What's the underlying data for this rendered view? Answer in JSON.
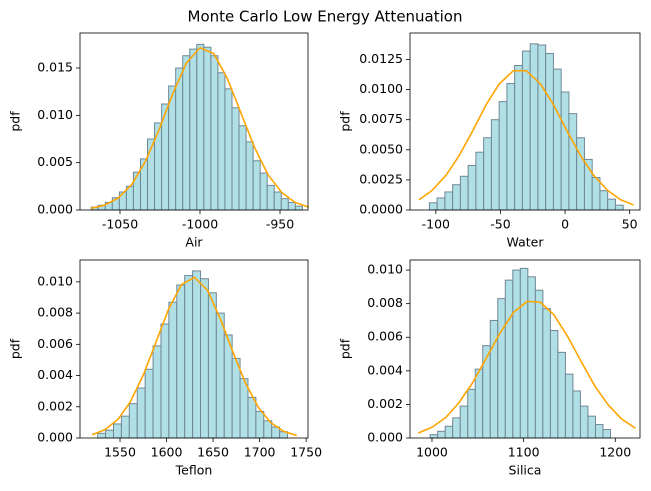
{
  "title": "Monte Carlo Low Energy Attenuation",
  "chart_data": [
    {
      "type": "histogram",
      "xlabel": "Air",
      "ylabel": "pdf",
      "color": "#b0e0e6",
      "edgecolor": "#6f8794",
      "bins": [
        -1068,
        -1063.6,
        -1059.2,
        -1054.8,
        -1050.4,
        -1046,
        -1041.6,
        -1037.2,
        -1032.8,
        -1028.4,
        -1024,
        -1019.6,
        -1015.2,
        -1010.8,
        -1006.4,
        -1002,
        -997.6,
        -993.2,
        -988.8,
        -984.4,
        -980,
        -975.6,
        -971.2,
        -966.8,
        -962.4,
        -958,
        -953.6,
        -949.2,
        -944.8,
        -940.4,
        -936
      ],
      "values": [
        0.0003,
        0.0005,
        0.0008,
        0.0013,
        0.0019,
        0.0025,
        0.004,
        0.0054,
        0.0075,
        0.0092,
        0.0112,
        0.0131,
        0.015,
        0.0163,
        0.017,
        0.0175,
        0.0172,
        0.0163,
        0.0145,
        0.0128,
        0.0108,
        0.0089,
        0.0072,
        0.0052,
        0.0039,
        0.0026,
        0.0019,
        0.0012,
        0.0008,
        0.0004
      ],
      "curve": {
        "color": "#ffa500",
        "x": [
          -1068,
          -1059.5,
          -1051,
          -1042.5,
          -1034,
          -1025.5,
          -1017,
          -1008.5,
          -1000,
          -991.5,
          -983,
          -974.5,
          -966,
          -957.5,
          -949,
          -940.5,
          -932
        ],
        "values": [
          0.00018,
          0.00052,
          0.00127,
          0.00273,
          0.00518,
          0.00851,
          0.0123,
          0.01553,
          0.01714,
          0.01654,
          0.01393,
          0.0103,
          0.00664,
          0.00373,
          0.00186,
          0.00079,
          0.0003
        ]
      },
      "xlim": [
        -1075,
        -932.5
      ],
      "ylim": [
        0,
        0.0187
      ],
      "xticks": [
        -1050,
        -1000,
        -950
      ],
      "yticks": [
        {
          "value": 0,
          "label": "0.000"
        },
        0.005,
        {
          "value": 0.01,
          "label": "0.010"
        },
        0.015
      ]
    },
    {
      "type": "histogram",
      "xlabel": "Water",
      "ylabel": "pdf",
      "color": "#b0e0e6",
      "edgecolor": "#6f8794",
      "bins": [
        -105,
        -99,
        -93,
        -87,
        -81,
        -75,
        -69,
        -63,
        -57,
        -51,
        -45,
        -39,
        -33,
        -27,
        -21,
        -15,
        -9,
        -3,
        3,
        9,
        15,
        21,
        27,
        33,
        39,
        45
      ],
      "values": [
        0.0006,
        0.001,
        0.0015,
        0.0021,
        0.0028,
        0.0037,
        0.0048,
        0.006,
        0.0075,
        0.009,
        0.0105,
        0.012,
        0.0132,
        0.0138,
        0.0137,
        0.013,
        0.0117,
        0.0098,
        0.008,
        0.006,
        0.0042,
        0.0027,
        0.0016,
        0.0009,
        0.0004
      ],
      "curve": {
        "color": "#ffa500",
        "x": [
          -113,
          -103,
          -92,
          -82,
          -71,
          -61,
          -51,
          -40,
          -30,
          -19,
          -9,
          1,
          12,
          22,
          33,
          43,
          53
        ],
        "values": [
          0.00085,
          0.00162,
          0.0029,
          0.00451,
          0.00667,
          0.00876,
          0.01047,
          0.01157,
          0.01157,
          0.01047,
          0.00876,
          0.00667,
          0.00451,
          0.0029,
          0.00162,
          0.00085,
          0.00042
        ]
      },
      "xlim": [
        -120,
        58
      ],
      "ylim": [
        0,
        0.0147
      ],
      "xticks": [
        -100,
        -50,
        0,
        50
      ],
      "yticks": [
        {
          "value": 0,
          "label": "0.0000"
        },
        0.0025,
        {
          "value": 0.005,
          "label": "0.0050"
        },
        0.0075,
        {
          "value": 0.01,
          "label": "0.0100"
        },
        0.0125
      ]
    },
    {
      "type": "histogram",
      "xlabel": "Teflon",
      "ylabel": "pdf",
      "color": "#b0e0e6",
      "edgecolor": "#6f8794",
      "bins": [
        1526,
        1534.5,
        1543,
        1551.5,
        1560,
        1568.5,
        1577,
        1585.5,
        1594,
        1602.5,
        1611,
        1619.5,
        1628,
        1636.5,
        1645,
        1653.5,
        1662,
        1670.5,
        1679,
        1687.5,
        1696,
        1704.5,
        1713,
        1721.5,
        1730
      ],
      "values": [
        0.0003,
        0.0005,
        0.0009,
        0.0014,
        0.0022,
        0.0032,
        0.0044,
        0.0059,
        0.0073,
        0.0087,
        0.0098,
        0.0104,
        0.0107,
        0.0102,
        0.0093,
        0.008,
        0.0066,
        0.0051,
        0.0038,
        0.0026,
        0.0017,
        0.0011,
        0.0007,
        0.0004
      ],
      "curve": {
        "color": "#ffa500",
        "x": [
          1520,
          1534,
          1548,
          1561,
          1575,
          1589,
          1602,
          1616,
          1630,
          1644,
          1658,
          1671,
          1685,
          1699,
          1712,
          1726,
          1740
        ],
        "values": [
          0.00021,
          0.00054,
          0.00121,
          0.00231,
          0.00403,
          0.00619,
          0.00823,
          0.00982,
          0.01029,
          0.00947,
          0.0076,
          0.00556,
          0.00349,
          0.00193,
          0.00098,
          0.00042,
          0.00016
        ]
      },
      "xlim": [
        1507,
        1752
      ],
      "ylim": [
        0,
        0.0114
      ],
      "xticks": [
        1550,
        1600,
        1650,
        1700,
        1750
      ],
      "yticks": [
        {
          "value": 0,
          "label": "0.000"
        },
        0.002,
        0.004,
        0.006,
        0.008,
        {
          "value": 0.01,
          "label": "0.010"
        }
      ]
    },
    {
      "type": "histogram",
      "xlabel": "Silica",
      "ylabel": "pdf",
      "color": "#b0e0e6",
      "edgecolor": "#6f8794",
      "bins": [
        998,
        1006.2,
        1014.4,
        1022.6,
        1030.8,
        1039,
        1047.2,
        1055.4,
        1063.6,
        1071.8,
        1080,
        1088.2,
        1096.4,
        1104.6,
        1112.8,
        1121,
        1129.2,
        1137.4,
        1145.6,
        1153.8,
        1162,
        1170.2,
        1178.4,
        1186.6,
        1194.8
      ],
      "values": [
        0.0002,
        0.0004,
        0.0007,
        0.0012,
        0.0019,
        0.0029,
        0.0041,
        0.0055,
        0.007,
        0.0083,
        0.0094,
        0.01,
        0.0101,
        0.0096,
        0.0088,
        0.0077,
        0.0064,
        0.0051,
        0.0038,
        0.0028,
        0.0019,
        0.0013,
        0.0008,
        0.0005
      ],
      "curve": {
        "color": "#ffa500",
        "x": [
          985,
          1000,
          1015,
          1029,
          1044,
          1059,
          1074,
          1089,
          1104,
          1118,
          1133,
          1148,
          1163,
          1178,
          1192,
          1207,
          1222
        ],
        "values": [
          0.0003,
          0.00064,
          0.00122,
          0.00207,
          0.00326,
          0.00473,
          0.00623,
          0.00748,
          0.00814,
          0.00809,
          0.00734,
          0.00605,
          0.00453,
          0.00307,
          0.00199,
          0.00113,
          0.00058
        ]
      },
      "xlim": [
        976,
        1227
      ],
      "ylim": [
        0,
        0.0106
      ],
      "xticks": [
        1000,
        1100,
        1200
      ],
      "yticks": [
        {
          "value": 0,
          "label": "0.000"
        },
        0.002,
        0.004,
        0.006,
        0.008,
        {
          "value": 0.01,
          "label": "0.010"
        }
      ]
    }
  ]
}
